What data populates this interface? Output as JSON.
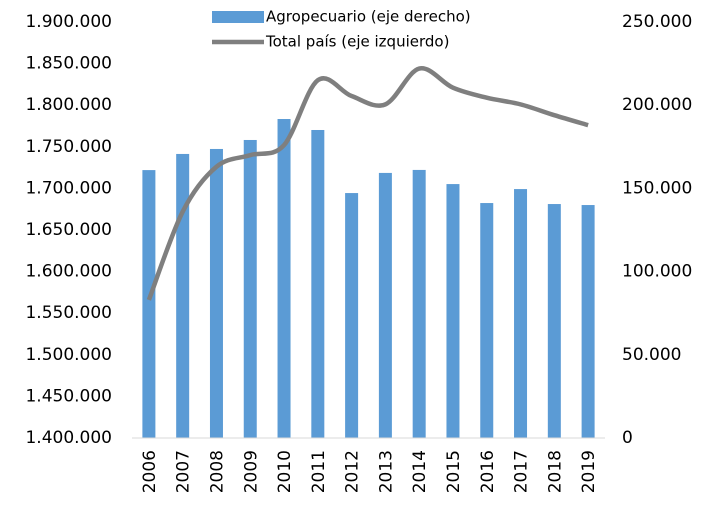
{
  "chart_data": {
    "type": "bar",
    "categories": [
      "2006",
      "2007",
      "2008",
      "2009",
      "2010",
      "2011",
      "2012",
      "2013",
      "2014",
      "2015",
      "2016",
      "2017",
      "2018",
      "2019"
    ],
    "series": [
      {
        "name": "Agropecuario (eje derecho)",
        "type": "bar",
        "axis": "y2",
        "color": "#5b9bd5",
        "values": [
          161000,
          170700,
          173700,
          179100,
          191700,
          185100,
          147200,
          159300,
          161100,
          152600,
          141200,
          149600,
          140600,
          140000
        ]
      },
      {
        "name": "Total país (eje izquierdo)",
        "type": "line",
        "color": "#7f7f7f",
        "values": [
          1566000,
          1672000,
          1726000,
          1740000,
          1752000,
          1830000,
          1811000,
          1801000,
          1844000,
          1821000,
          1809000,
          1801000,
          1788000,
          1776000
        ]
      }
    ],
    "ylim": [
      1400000,
      1900000
    ],
    "yticks": [
      {
        "value": 1400000,
        "label": "1.400.000"
      },
      {
        "value": 1450000,
        "label": "1.450.000"
      },
      {
        "value": 1500000,
        "label": "1.500.000"
      },
      {
        "value": 1550000,
        "label": "1.550.000"
      },
      {
        "value": 1600000,
        "label": "1.600.000"
      },
      {
        "value": 1650000,
        "label": "1.650.000"
      },
      {
        "value": 1700000,
        "label": "1.700.000"
      },
      {
        "value": 1750000,
        "label": "1.750.000"
      },
      {
        "value": 1800000,
        "label": "1.800.000"
      },
      {
        "value": 1850000,
        "label": "1.850.000"
      },
      {
        "value": 1900000,
        "label": "1.900.000"
      }
    ],
    "y2lim": [
      0,
      250000
    ],
    "y2ticks": [
      0,
      {
        "value": 50000,
        "label": "50.000"
      },
      {
        "value": 100000,
        "label": "100.000"
      },
      {
        "value": 150000,
        "label": "150.000"
      },
      {
        "value": 200000,
        "label": "200.000"
      },
      {
        "value": 250000,
        "label": "250.000"
      }
    ]
  }
}
